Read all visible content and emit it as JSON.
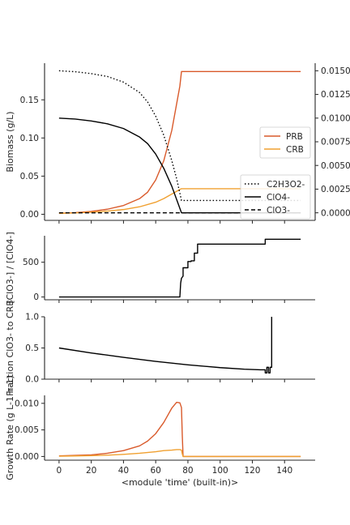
{
  "chart_data": [
    {
      "type": "line",
      "ylabel": "Biomass (g/L)",
      "xlabel": "",
      "xlim": [
        -9,
        159
      ],
      "ylim": [
        -0.008,
        0.198
      ],
      "yticks": [
        0.0,
        0.05,
        0.1,
        0.15
      ],
      "ytick_labels": [
        "0.00",
        "0.05",
        "0.10",
        "0.15"
      ],
      "series": [
        {
          "name": "PRB",
          "color": "#d95a2b",
          "dash": "none",
          "x": [
            0,
            10,
            20,
            30,
            40,
            50,
            55,
            60,
            65,
            70,
            75,
            76,
            150
          ],
          "y": [
            0.0014,
            0.0022,
            0.0038,
            0.0066,
            0.0115,
            0.0205,
            0.029,
            0.045,
            0.07,
            0.11,
            0.168,
            0.187,
            0.187
          ]
        },
        {
          "name": "CRB",
          "color": "#f0a030",
          "dash": "none",
          "x": [
            0,
            10,
            20,
            30,
            40,
            50,
            60,
            65,
            70,
            75,
            76,
            150
          ],
          "y": [
            0.0012,
            0.0018,
            0.0027,
            0.0041,
            0.0062,
            0.0098,
            0.0158,
            0.0205,
            0.0265,
            0.0325,
            0.0335,
            0.0335
          ]
        }
      ],
      "secondary_axis": {
        "ylim": [
          -0.0008,
          0.0158
        ],
        "yticks": [
          0.0,
          0.0025,
          0.005,
          0.0075,
          0.01,
          0.0125,
          0.015
        ],
        "ytick_labels": [
          "0.0000",
          "0.0025",
          "0.0050",
          "0.0075",
          "0.0100",
          "0.0125",
          "0.0150"
        ],
        "series": [
          {
            "name": "C2H3O2-",
            "color": "#000000",
            "dash": "dotted",
            "x": [
              0,
              10,
              20,
              30,
              40,
              50,
              55,
              60,
              65,
              70,
              73,
              76,
              150
            ],
            "y": [
              0.015,
              0.0149,
              0.0147,
              0.0144,
              0.0138,
              0.0127,
              0.0117,
              0.0102,
              0.0082,
              0.0055,
              0.0036,
              0.0013,
              0.0013
            ]
          },
          {
            "name": "ClO4-",
            "color": "#000000",
            "dash": "solid",
            "x": [
              0,
              10,
              20,
              30,
              40,
              50,
              55,
              60,
              65,
              70,
              73,
              76,
              150
            ],
            "y": [
              0.01,
              0.0099,
              0.0097,
              0.0094,
              0.0089,
              0.008,
              0.0073,
              0.0062,
              0.0047,
              0.0028,
              0.0014,
              0.0,
              0.0
            ]
          },
          {
            "name": "ClO3-",
            "color": "#000000",
            "dash": "dashed",
            "x": [
              0,
              75,
              150
            ],
            "y": [
              0.0,
              0.0,
              0.0
            ]
          }
        ]
      },
      "legends": [
        {
          "placement": "center-right",
          "entries": [
            "PRB",
            "CRB"
          ]
        },
        {
          "placement": "lower-right",
          "entries": [
            "C2H3O2-",
            "ClO4-",
            "ClO3-"
          ]
        }
      ],
      "grid": false
    },
    {
      "type": "line",
      "ylabel": "[ClO3-] / [ClO4-]",
      "xlim": [
        -9,
        159
      ],
      "ylim": [
        -40,
        880
      ],
      "yticks": [
        0,
        500
      ],
      "ytick_labels": [
        "0",
        "500"
      ],
      "series": [
        {
          "color": "#000000",
          "x": [
            0,
            75,
            75.5,
            76,
            77,
            77,
            80,
            80,
            82,
            82,
            84,
            84,
            86,
            86,
            128,
            128,
            150
          ],
          "y": [
            0,
            0,
            200,
            270,
            300,
            420,
            420,
            510,
            510,
            520,
            520,
            630,
            630,
            760,
            760,
            830,
            830
          ]
        }
      ],
      "grid": false
    },
    {
      "type": "line",
      "ylabel": "Fraction ClO3- to CRB",
      "xlim": [
        -9,
        159
      ],
      "ylim": [
        0.0,
        1.0
      ],
      "yticks": [
        0.0,
        0.5,
        1.0
      ],
      "ytick_labels": [
        "0.0",
        "0.5",
        "1.0"
      ],
      "series": [
        {
          "color": "#000000",
          "x": [
            0,
            20,
            40,
            60,
            80,
            100,
            115,
            125,
            128,
            128,
            129,
            129,
            130,
            130,
            131,
            131,
            132,
            132
          ],
          "y": [
            0.5,
            0.42,
            0.35,
            0.285,
            0.23,
            0.185,
            0.16,
            0.15,
            0.15,
            0.1,
            0.1,
            0.19,
            0.19,
            0.1,
            0.1,
            0.19,
            0.19,
            1.0
          ]
        }
      ],
      "grid": false
    },
    {
      "type": "line",
      "ylabel": "Growth Rate (g L-1 h-1)",
      "xlabel": "<module 'time' (built-in)>",
      "xlim": [
        -9,
        159
      ],
      "ylim": [
        -0.0007,
        0.0115
      ],
      "xticks": [
        0,
        20,
        40,
        60,
        80,
        100,
        120,
        140
      ],
      "xtick_labels": [
        "0",
        "20",
        "40",
        "60",
        "80",
        "100",
        "120",
        "140"
      ],
      "yticks": [
        0.0,
        0.005,
        0.01
      ],
      "ytick_labels": [
        "0.000",
        "0.005",
        "0.010"
      ],
      "series": [
        {
          "color": "#d95a2b",
          "x": [
            0,
            10,
            20,
            30,
            40,
            50,
            55,
            60,
            65,
            70,
            73,
            75,
            76,
            76.5,
            77,
            150
          ],
          "y": [
            0.0001,
            0.0002,
            0.0003,
            0.0006,
            0.0011,
            0.002,
            0.0029,
            0.0043,
            0.0064,
            0.0091,
            0.0102,
            0.0101,
            0.0092,
            0.004,
            0.0,
            0.0
          ]
        },
        {
          "color": "#f0a030",
          "x": [
            0,
            10,
            20,
            30,
            40,
            50,
            60,
            65,
            70,
            73,
            75,
            76,
            76.5,
            77,
            150
          ],
          "y": [
            5e-05,
            0.0001,
            0.00015,
            0.00025,
            0.0004,
            0.0006,
            0.0009,
            0.0011,
            0.0012,
            0.0013,
            0.0013,
            0.0012,
            0.0005,
            0.0,
            0.0
          ]
        }
      ],
      "grid": false
    }
  ]
}
